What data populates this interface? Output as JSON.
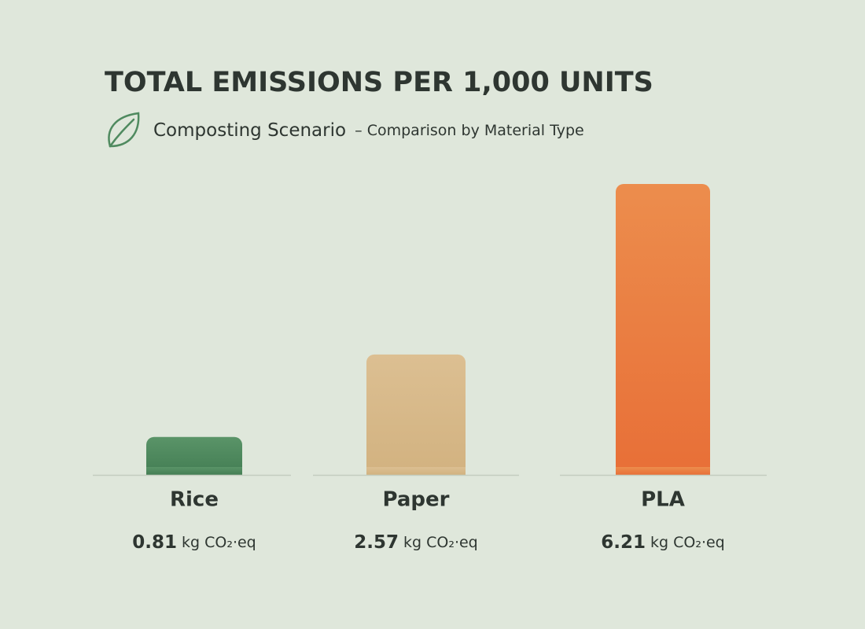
{
  "chart_data": {
    "type": "bar",
    "title": "TOTAL EMISSIONS PER 1,000 UNITS",
    "subtitle": "Composting Scenario",
    "subtitle_detail": "– Comparison by Material Type",
    "categories": [
      "Rice",
      "Paper",
      "PLA"
    ],
    "values": [
      0.81,
      2.57,
      6.21
    ],
    "value_unit": "kg CO₂·eq",
    "colors": [
      "#4f8a5f",
      "#d8b98b",
      "#ea7b3f"
    ]
  }
}
